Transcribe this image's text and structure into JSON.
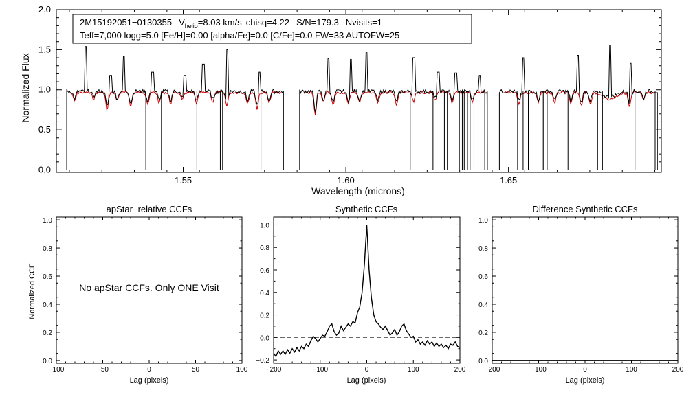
{
  "colors": {
    "observed": "#000000",
    "model": "#d00000",
    "zero_line": "#555555",
    "axes": "#000000",
    "background": "#ffffff"
  },
  "info_box": {
    "star_id": "2M15192051−0130355",
    "vhelio_symbol": "V",
    "vhelio_subscript": "helio",
    "vhelio_value": "=8.03 km/s",
    "chisq": "chisq=4.22",
    "snr": "S/N=179.3",
    "nvisits": "Nvisits=1",
    "line2": "Teff=7,000 logg=5.0 [Fe/H]=0.00 [alpha/Fe]=0.0 [C/Fe]=0.0 FW=33 AUTOFW=25"
  },
  "chart_data": [
    {
      "id": "spectrum",
      "type": "line",
      "title": "",
      "xlabel": "Wavelength (microns)",
      "ylabel": "Normalized Flux",
      "xlim": [
        1.511,
        1.697
      ],
      "ylim": [
        -0.03,
        2.0
      ],
      "xticks": [
        1.55,
        1.6,
        1.65
      ],
      "xtick_labels": [
        "1.55",
        "1.60",
        "1.65"
      ],
      "yticks": [
        0.0,
        0.5,
        1.0,
        1.5,
        2.0
      ],
      "ytick_labels": [
        "0.0",
        "0.5",
        "1.0",
        "1.5",
        "2.0"
      ],
      "chips": [
        [
          1.5142,
          1.5808
        ],
        [
          1.5858,
          1.6435
        ],
        [
          1.6472,
          1.6958
        ]
      ],
      "series": [
        {
          "name": "observed",
          "continuum": 0.98,
          "emission_spikes": [
            [
              1.5201,
              1.54
            ],
            [
              1.5277,
              1.18
            ],
            [
              1.5317,
              1.42
            ],
            [
              1.5406,
              1.22
            ],
            [
              1.5505,
              1.18
            ],
            [
              1.5562,
              1.32
            ],
            [
              1.5636,
              1.5
            ],
            [
              1.5735,
              1.22
            ],
            [
              1.5946,
              1.39
            ],
            [
              1.6016,
              1.38
            ],
            [
              1.6063,
              1.47
            ],
            [
              1.6209,
              1.4
            ],
            [
              1.6284,
              1.22
            ],
            [
              1.6338,
              1.21
            ],
            [
              1.6412,
              1.18
            ],
            [
              1.6545,
              1.4
            ],
            [
              1.6713,
              1.43
            ],
            [
              1.6812,
              1.55
            ],
            [
              1.6876,
              1.33
            ]
          ],
          "dropouts": [
            1.5142,
            1.5385,
            1.5433,
            1.5542,
            1.5614,
            1.5621,
            1.5739,
            1.5808,
            1.5858,
            1.6198,
            1.6268,
            1.6303,
            1.6312,
            1.6349,
            1.6358,
            1.6364,
            1.6374,
            1.6382,
            1.6394,
            1.6427,
            1.6435,
            1.6528,
            1.6545,
            1.6561,
            1.6604,
            1.6608,
            1.6619,
            1.6683,
            1.6774,
            1.6789,
            1.6889,
            1.6951
          ]
        },
        {
          "name": "model",
          "continuum": 0.98,
          "absorption_lines": [
            [
              1.5166,
              0.87
            ],
            [
              1.5224,
              0.9
            ],
            [
              1.5266,
              0.76
            ],
            [
              1.5297,
              0.88
            ],
            [
              1.5339,
              0.81
            ],
            [
              1.5391,
              0.84
            ],
            [
              1.5426,
              0.85
            ],
            [
              1.5461,
              0.84
            ],
            [
              1.5497,
              0.88
            ],
            [
              1.5541,
              0.84
            ],
            [
              1.5591,
              0.86
            ],
            [
              1.5634,
              0.82
            ],
            [
              1.5698,
              0.84
            ],
            [
              1.5727,
              0.78
            ],
            [
              1.5764,
              0.85
            ],
            [
              1.5906,
              0.7
            ],
            [
              1.5931,
              0.86
            ],
            [
              1.5961,
              0.82
            ],
            [
              1.6007,
              0.84
            ],
            [
              1.6042,
              0.86
            ],
            [
              1.6098,
              0.84
            ],
            [
              1.6156,
              0.82
            ],
            [
              1.6208,
              0.86
            ],
            [
              1.6274,
              0.88
            ],
            [
              1.6327,
              0.84
            ],
            [
              1.6389,
              0.86
            ],
            [
              1.6532,
              0.84
            ],
            [
              1.6592,
              0.86
            ],
            [
              1.6642,
              0.85
            ],
            [
              1.6692,
              0.84
            ],
            [
              1.6724,
              0.82
            ],
            [
              1.6752,
              0.84
            ],
            [
              1.6815,
              0.89
            ],
            [
              1.6872,
              0.8
            ],
            [
              1.6915,
              0.88
            ]
          ],
          "broad_dip": [
            1.681,
            0.9
          ]
        }
      ]
    },
    {
      "id": "apstar_ccf",
      "type": "line",
      "title": "apStar−relative CCFs",
      "xlabel": "Lag (pixels)",
      "ylabel": "Normalized CCF",
      "xlim": [
        -100,
        100
      ],
      "ylim": [
        -0.02,
        1.02
      ],
      "xticks": [
        -100,
        -50,
        0,
        50,
        100
      ],
      "xtick_labels": [
        "−100",
        "−50",
        "0",
        "50",
        "100"
      ],
      "yticks": [
        0.0,
        0.2,
        0.4,
        0.6,
        0.8,
        1.0
      ],
      "ytick_labels": [
        "0.0",
        "0.2",
        "0.4",
        "0.6",
        "0.8",
        "1.0"
      ],
      "annotation": "No apStar CCFs.  Only ONE Visit",
      "series": []
    },
    {
      "id": "synthetic_ccf",
      "type": "line",
      "title": "Synthetic CCFs",
      "xlabel": "Lag (pixels)",
      "ylabel": "",
      "xlim": [
        -200,
        200
      ],
      "ylim": [
        -0.23,
        1.07
      ],
      "xticks": [
        -200,
        -100,
        0,
        100,
        200
      ],
      "xtick_labels": [
        "−200",
        "−100",
        "0",
        "100",
        "200"
      ],
      "yticks": [
        -0.2,
        0.0,
        0.2,
        0.4,
        0.6,
        0.8,
        1.0
      ],
      "ytick_labels": [
        "−0.2",
        "0.0",
        "0.2",
        "0.4",
        "0.6",
        "0.8",
        "1.0"
      ],
      "reference_line": 0.0,
      "series": [
        {
          "name": "ccf",
          "x": [
            -200,
            -195,
            -190,
            -185,
            -180,
            -175,
            -170,
            -165,
            -160,
            -155,
            -150,
            -145,
            -140,
            -135,
            -130,
            -125,
            -120,
            -115,
            -110,
            -105,
            -100,
            -95,
            -90,
            -85,
            -80,
            -75,
            -70,
            -65,
            -60,
            -55,
            -50,
            -45,
            -40,
            -35,
            -30,
            -25,
            -20,
            -15,
            -10,
            -5,
            0,
            5,
            10,
            15,
            20,
            25,
            30,
            35,
            40,
            45,
            50,
            55,
            60,
            65,
            70,
            75,
            80,
            85,
            90,
            95,
            100,
            105,
            110,
            115,
            120,
            125,
            130,
            135,
            140,
            145,
            150,
            155,
            160,
            165,
            170,
            175,
            180,
            185,
            190,
            195,
            200
          ],
          "y": [
            -0.14,
            -0.17,
            -0.12,
            -0.15,
            -0.12,
            -0.15,
            -0.11,
            -0.14,
            -0.1,
            -0.13,
            -0.09,
            -0.12,
            -0.08,
            -0.1,
            -0.06,
            -0.08,
            -0.03,
            0.01,
            -0.01,
            -0.04,
            -0.01,
            0.02,
            0.01,
            0.05,
            0.1,
            0.12,
            0.05,
            0.02,
            0.04,
            0.1,
            0.06,
            0.09,
            0.12,
            0.1,
            0.14,
            0.13,
            0.22,
            0.27,
            0.4,
            0.65,
            1.0,
            0.6,
            0.35,
            0.2,
            0.14,
            0.12,
            0.09,
            0.07,
            0.1,
            0.06,
            0.02,
            0.04,
            0.07,
            0.02,
            0.05,
            0.1,
            0.12,
            0.06,
            0.03,
            0.0,
            0.01,
            -0.04,
            -0.02,
            -0.06,
            -0.04,
            -0.07,
            -0.03,
            -0.06,
            -0.04,
            -0.08,
            -0.05,
            -0.08,
            -0.06,
            -0.09,
            -0.07,
            -0.1,
            -0.06,
            -0.07,
            -0.04,
            -0.08,
            -0.09
          ]
        }
      ]
    },
    {
      "id": "difference_ccf",
      "type": "line",
      "title": "Difference Synthetic CCFs",
      "xlabel": "Lag (pixels)",
      "ylabel": "",
      "xlim": [
        -200,
        200
      ],
      "ylim": [
        -0.02,
        1.02
      ],
      "xticks": [
        -200,
        -100,
        0,
        100,
        200
      ],
      "xtick_labels": [
        "−200",
        "−100",
        "0",
        "100",
        "200"
      ],
      "yticks": [
        0.0,
        0.2,
        0.4,
        0.6,
        0.8,
        1.0
      ],
      "ytick_labels": [
        "0.0",
        "0.2",
        "0.4",
        "0.6",
        "0.8",
        "1.0"
      ],
      "series": [
        {
          "name": "difference",
          "x": [
            -200,
            200
          ],
          "y": [
            0.0,
            0.0
          ]
        }
      ]
    }
  ]
}
